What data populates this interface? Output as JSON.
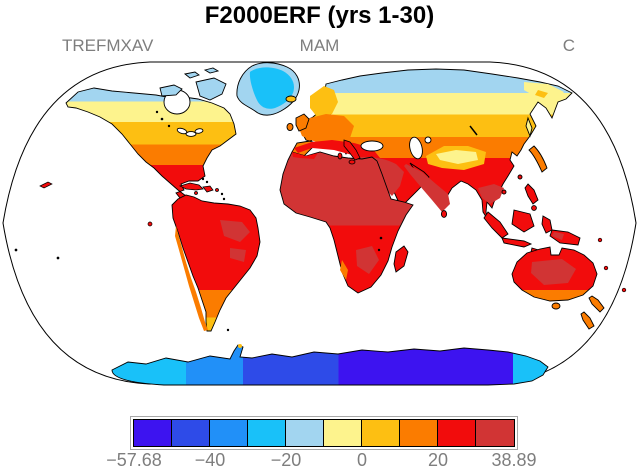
{
  "title": "F2000ERF (yrs 1-30)",
  "header": {
    "variable": "TREFMXAV",
    "season": "MAM",
    "units": "C",
    "text_color": "#7e7e7e"
  },
  "chart_data": {
    "type": "heatmap",
    "subtype": "filled-contour-world-map",
    "projection": "robinson",
    "title": "F2000ERF (yrs 1-30)",
    "variable": "TREFMXAV",
    "season": "MAM",
    "units": "C",
    "value_range": [
      -57.68,
      38.89
    ],
    "ocean_color": "#ffffff",
    "coastline_color": "#000000",
    "legend_position": "bottom",
    "colorbar": {
      "levels": [
        -57.68,
        -50,
        -40,
        -30,
        -20,
        -10,
        0,
        10,
        20,
        30,
        38.89
      ],
      "colors": [
        "#3d13f0",
        "#2e4be8",
        "#2190f8",
        "#19c1f9",
        "#a2d5f0",
        "#fdf38d",
        "#fdbf12",
        "#fb7c00",
        "#f20c0c",
        "#d13434"
      ],
      "tick_labels": [
        "−57.68",
        "−40",
        "−20",
        "0",
        "20",
        "38.89"
      ],
      "tick_level_indices": [
        0,
        2,
        4,
        6,
        8,
        10
      ]
    },
    "regions": [
      {
        "name": "Antarctica interior",
        "approx_value_c": [
          -57.68,
          -50
        ]
      },
      {
        "name": "Antarctica mid",
        "approx_value_c": [
          -50,
          -30
        ]
      },
      {
        "name": "Antarctica coast / peninsula",
        "approx_value_c": [
          -30,
          -20
        ]
      },
      {
        "name": "Greenland",
        "approx_value_c": [
          -30,
          -20
        ]
      },
      {
        "name": "Canadian Arctic islands",
        "approx_value_c": [
          -20,
          -10
        ]
      },
      {
        "name": "Northern Siberia coast",
        "approx_value_c": [
          -20,
          -10
        ]
      },
      {
        "name": "Northern Canada / central Siberia band",
        "approx_value_c": [
          -10,
          0
        ]
      },
      {
        "name": "Tibetan Plateau",
        "approx_value_c": [
          -10,
          0
        ]
      },
      {
        "name": "Central Canada / Scandinavia / Manchuria",
        "approx_value_c": [
          0,
          10
        ]
      },
      {
        "name": "Northern US / Europe / Central Asia / Japan / Patagonia / New Zealand",
        "approx_value_c": [
          10,
          20
        ]
      },
      {
        "name": "Southern US / Mediterranean / China / South America / southern Africa / Australia",
        "approx_value_c": [
          20,
          30
        ]
      },
      {
        "name": "Sahara / Arabia / Iran / India / Indochina interior / Amazon patches / Australian interior",
        "approx_value_c": [
          30,
          38.89
        ]
      }
    ]
  }
}
